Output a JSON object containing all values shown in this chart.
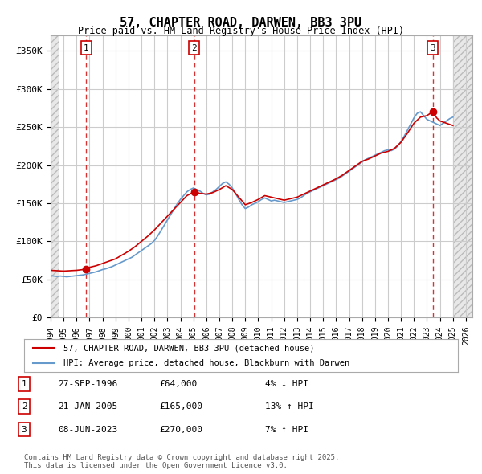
{
  "title": "57, CHAPTER ROAD, DARWEN, BB3 3PU",
  "subtitle": "Price paid vs. HM Land Registry's House Price Index (HPI)",
  "ylabel": "",
  "ylim": [
    0,
    370000
  ],
  "yticks": [
    0,
    50000,
    100000,
    150000,
    200000,
    250000,
    300000,
    350000
  ],
  "ytick_labels": [
    "£0",
    "£50K",
    "£100K",
    "£150K",
    "£200K",
    "£250K",
    "£300K",
    "£350K"
  ],
  "xlim_start": 1994.0,
  "xlim_end": 2026.5,
  "background_color": "#ffffff",
  "plot_bg_color": "#ffffff",
  "grid_color": "#cccccc",
  "hatch_color": "#d0d0d0",
  "sale_color": "#cc0000",
  "hpi_color": "#6699cc",
  "legend_label_sale": "57, CHAPTER ROAD, DARWEN, BB3 3PU (detached house)",
  "legend_label_hpi": "HPI: Average price, detached house, Blackburn with Darwen",
  "transactions": [
    {
      "date": 1996.74,
      "price": 64000,
      "label": "1"
    },
    {
      "date": 2005.06,
      "price": 165000,
      "label": "2"
    },
    {
      "date": 2023.44,
      "price": 270000,
      "label": "3"
    }
  ],
  "transaction_vlines": [
    1996.74,
    2005.06,
    2023.44
  ],
  "table_rows": [
    {
      "num": "1",
      "date": "27-SEP-1996",
      "price": "£64,000",
      "hpi": "4% ↓ HPI"
    },
    {
      "num": "2",
      "date": "21-JAN-2005",
      "price": "£165,000",
      "hpi": "13% ↑ HPI"
    },
    {
      "num": "3",
      "date": "08-JUN-2023",
      "price": "£270,000",
      "hpi": "7% ↑ HPI"
    }
  ],
  "footer": "Contains HM Land Registry data © Crown copyright and database right 2025.\nThis data is licensed under the Open Government Licence v3.0.",
  "hpi_series": {
    "years": [
      1994.0,
      1994.25,
      1994.5,
      1994.75,
      1995.0,
      1995.25,
      1995.5,
      1995.75,
      1996.0,
      1996.25,
      1996.5,
      1996.75,
      1997.0,
      1997.25,
      1997.5,
      1997.75,
      1998.0,
      1998.25,
      1998.5,
      1998.75,
      1999.0,
      1999.25,
      1999.5,
      1999.75,
      2000.0,
      2000.25,
      2000.5,
      2000.75,
      2001.0,
      2001.25,
      2001.5,
      2001.75,
      2002.0,
      2002.25,
      2002.5,
      2002.75,
      2003.0,
      2003.25,
      2003.5,
      2003.75,
      2004.0,
      2004.25,
      2004.5,
      2004.75,
      2005.0,
      2005.25,
      2005.5,
      2005.75,
      2006.0,
      2006.25,
      2006.5,
      2006.75,
      2007.0,
      2007.25,
      2007.5,
      2007.75,
      2008.0,
      2008.25,
      2008.5,
      2008.75,
      2009.0,
      2009.25,
      2009.5,
      2009.75,
      2010.0,
      2010.25,
      2010.5,
      2010.75,
      2011.0,
      2011.25,
      2011.5,
      2011.75,
      2012.0,
      2012.25,
      2012.5,
      2012.75,
      2013.0,
      2013.25,
      2013.5,
      2013.75,
      2014.0,
      2014.25,
      2014.5,
      2014.75,
      2015.0,
      2015.25,
      2015.5,
      2015.75,
      2016.0,
      2016.25,
      2016.5,
      2016.75,
      2017.0,
      2017.25,
      2017.5,
      2017.75,
      2018.0,
      2018.25,
      2018.5,
      2018.75,
      2019.0,
      2019.25,
      2019.5,
      2019.75,
      2020.0,
      2020.25,
      2020.5,
      2020.75,
      2021.0,
      2021.25,
      2021.5,
      2021.75,
      2022.0,
      2022.25,
      2022.5,
      2022.75,
      2023.0,
      2023.25,
      2023.5,
      2023.75,
      2024.0,
      2024.25,
      2024.5,
      2024.75,
      2025.0
    ],
    "values": [
      55000,
      54500,
      54000,
      54500,
      54000,
      53500,
      54000,
      54500,
      55000,
      55500,
      56000,
      57000,
      58000,
      59000,
      60000,
      61500,
      63000,
      64000,
      65500,
      67000,
      69000,
      71000,
      73000,
      75000,
      77000,
      79000,
      82000,
      85000,
      88000,
      91000,
      94000,
      97000,
      101000,
      107000,
      114000,
      121000,
      128000,
      135000,
      142000,
      149000,
      155000,
      160000,
      165000,
      168000,
      170000,
      168000,
      166000,
      163000,
      161000,
      162000,
      165000,
      168000,
      172000,
      176000,
      178000,
      175000,
      170000,
      163000,
      155000,
      148000,
      143000,
      145000,
      148000,
      150000,
      152000,
      155000,
      157000,
      155000,
      153000,
      154000,
      153000,
      152000,
      151000,
      152000,
      153000,
      154000,
      155000,
      157000,
      160000,
      163000,
      165000,
      167000,
      169000,
      171000,
      173000,
      175000,
      177000,
      179000,
      181000,
      183000,
      186000,
      189000,
      192000,
      195000,
      198000,
      201000,
      204000,
      207000,
      209000,
      211000,
      213000,
      215000,
      217000,
      219000,
      220000,
      219000,
      221000,
      225000,
      231000,
      238000,
      246000,
      254000,
      262000,
      268000,
      270000,
      265000,
      260000,
      258000,
      256000,
      254000,
      252000,
      255000,
      258000,
      261000,
      263000
    ]
  },
  "sale_series": {
    "years": [
      1994.0,
      1994.5,
      1995.0,
      1995.5,
      1996.0,
      1996.5,
      1996.74,
      1997.0,
      1997.5,
      1998.0,
      1998.5,
      1999.0,
      1999.5,
      2000.0,
      2000.5,
      2001.0,
      2001.5,
      2002.0,
      2002.5,
      2003.0,
      2003.5,
      2004.0,
      2004.5,
      2005.06,
      2005.5,
      2006.0,
      2006.5,
      2007.0,
      2007.5,
      2008.0,
      2008.5,
      2009.0,
      2009.5,
      2010.0,
      2010.5,
      2011.0,
      2011.5,
      2012.0,
      2012.5,
      2013.0,
      2013.5,
      2014.0,
      2014.5,
      2015.0,
      2015.5,
      2016.0,
      2016.5,
      2017.0,
      2017.5,
      2018.0,
      2018.5,
      2019.0,
      2019.5,
      2020.0,
      2020.5,
      2021.0,
      2021.5,
      2022.0,
      2022.5,
      2023.0,
      2023.44,
      2023.75,
      2024.0,
      2024.5,
      2025.0
    ],
    "values": [
      62000,
      61500,
      61000,
      61500,
      62000,
      63000,
      64000,
      66000,
      68000,
      71000,
      74000,
      77000,
      82000,
      87000,
      93000,
      100000,
      107000,
      115000,
      124000,
      133000,
      142000,
      151000,
      160000,
      165000,
      163000,
      162000,
      164000,
      168000,
      173000,
      168000,
      158000,
      148000,
      151000,
      155000,
      160000,
      158000,
      156000,
      154000,
      156000,
      158000,
      162000,
      166000,
      170000,
      174000,
      178000,
      182000,
      187000,
      193000,
      199000,
      205000,
      208000,
      212000,
      216000,
      218000,
      222000,
      230000,
      242000,
      255000,
      263000,
      265000,
      270000,
      262000,
      258000,
      255000,
      252000
    ]
  }
}
